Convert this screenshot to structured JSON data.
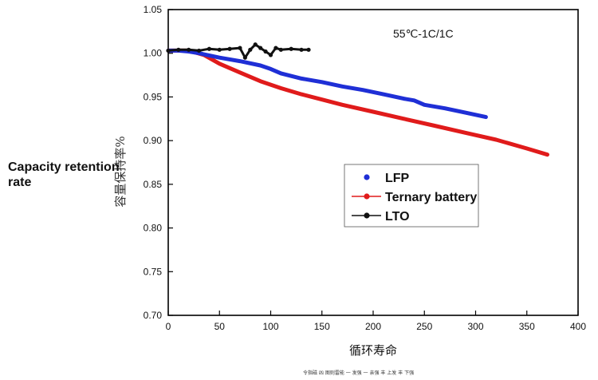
{
  "side_label": {
    "line1": "Capacity retention",
    "line2": "rate"
  },
  "footer_note": "令指磁 凶 图则雷能 一 发强 一 亲强 丰 上发 丰 下强",
  "chart_data": {
    "type": "line",
    "title": "",
    "annotation": "55℃-1C/1C",
    "xlabel": "循环寿命",
    "ylabel": "容量保持率%",
    "xlim": [
      0,
      400
    ],
    "ylim": [
      0.7,
      1.05
    ],
    "xticks": [
      "0",
      "50",
      "100",
      "150",
      "200",
      "250",
      "300",
      "350",
      "400"
    ],
    "yticks": [
      "0.70",
      "0.75",
      "0.80",
      "0.85",
      "0.90",
      "0.95",
      "1.00",
      "1.05"
    ],
    "grid": false,
    "legend_position": "center-right",
    "colors": {
      "LFP": "#1f2fd6",
      "Ternary battery": "#e01b1b",
      "LTO": "#111111"
    },
    "series": [
      {
        "name": "LFP",
        "marker": "dot",
        "x": [
          0,
          10,
          20,
          30,
          50,
          70,
          90,
          100,
          110,
          130,
          150,
          170,
          190,
          210,
          230,
          240,
          250,
          270,
          290,
          310
        ],
        "values": [
          1.003,
          1.003,
          1.002,
          1.0,
          0.995,
          0.991,
          0.986,
          0.982,
          0.977,
          0.971,
          0.967,
          0.962,
          0.958,
          0.953,
          0.948,
          0.946,
          0.941,
          0.937,
          0.932,
          0.927
        ]
      },
      {
        "name": "Ternary battery",
        "marker": "dot",
        "x": [
          0,
          20,
          35,
          50,
          70,
          90,
          110,
          130,
          150,
          170,
          200,
          230,
          260,
          290,
          320,
          350,
          370
        ],
        "values": [
          1.003,
          1.003,
          0.998,
          0.988,
          0.978,
          0.968,
          0.96,
          0.953,
          0.947,
          0.941,
          0.933,
          0.925,
          0.917,
          0.909,
          0.901,
          0.891,
          0.884
        ]
      },
      {
        "name": "LTO",
        "marker": "star",
        "x": [
          0,
          10,
          20,
          30,
          40,
          50,
          60,
          70,
          75,
          80,
          85,
          90,
          95,
          100,
          105,
          110,
          120,
          130,
          137
        ],
        "values": [
          1.003,
          1.004,
          1.004,
          1.003,
          1.005,
          1.004,
          1.005,
          1.006,
          0.995,
          1.004,
          1.01,
          1.006,
          1.002,
          0.998,
          1.006,
          1.004,
          1.005,
          1.004,
          1.004
        ]
      }
    ]
  }
}
